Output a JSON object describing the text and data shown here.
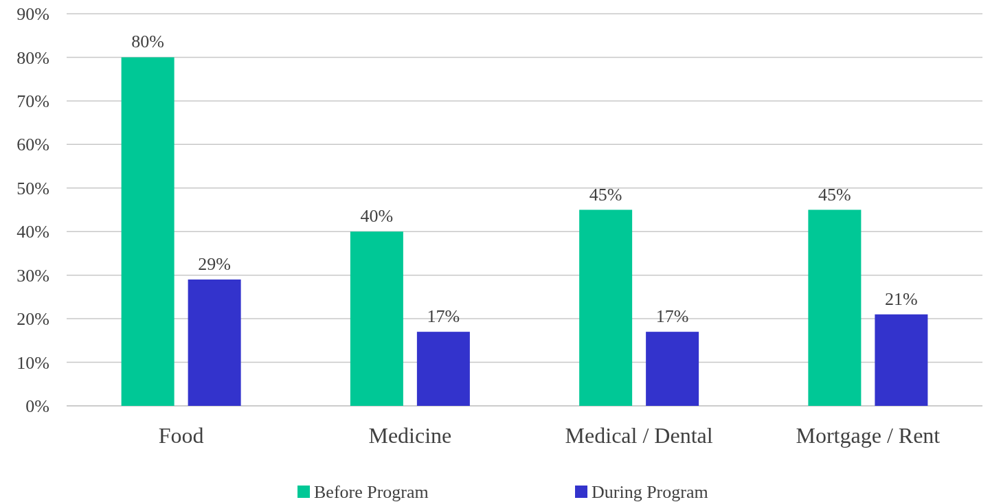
{
  "chart_data": {
    "type": "bar",
    "categories": [
      "Food",
      "Medicine",
      "Medical / Dental",
      "Mortgage / Rent"
    ],
    "series": [
      {
        "name": "Before Program",
        "color": "#00c896",
        "values": [
          80,
          40,
          45,
          45
        ],
        "value_labels": [
          "80%",
          "40%",
          "45%",
          "45%"
        ]
      },
      {
        "name": "During Program",
        "color": "#3333cc",
        "values": [
          29,
          17,
          17,
          21
        ],
        "value_labels": [
          "29%",
          "17%",
          "17%",
          "21%"
        ]
      }
    ],
    "ylim": [
      0,
      90
    ],
    "yticks": [
      {
        "value": 0,
        "label": "0%"
      },
      {
        "value": 10,
        "label": "10%"
      },
      {
        "value": 20,
        "label": "20%"
      },
      {
        "value": 30,
        "label": "30%"
      },
      {
        "value": 40,
        "label": "40%"
      },
      {
        "value": 50,
        "label": "50%"
      },
      {
        "value": 60,
        "label": "60%"
      },
      {
        "value": 70,
        "label": "70%"
      },
      {
        "value": 80,
        "label": "80%"
      },
      {
        "value": 90,
        "label": "90%"
      }
    ],
    "grid": "y",
    "legend": "bottom"
  }
}
